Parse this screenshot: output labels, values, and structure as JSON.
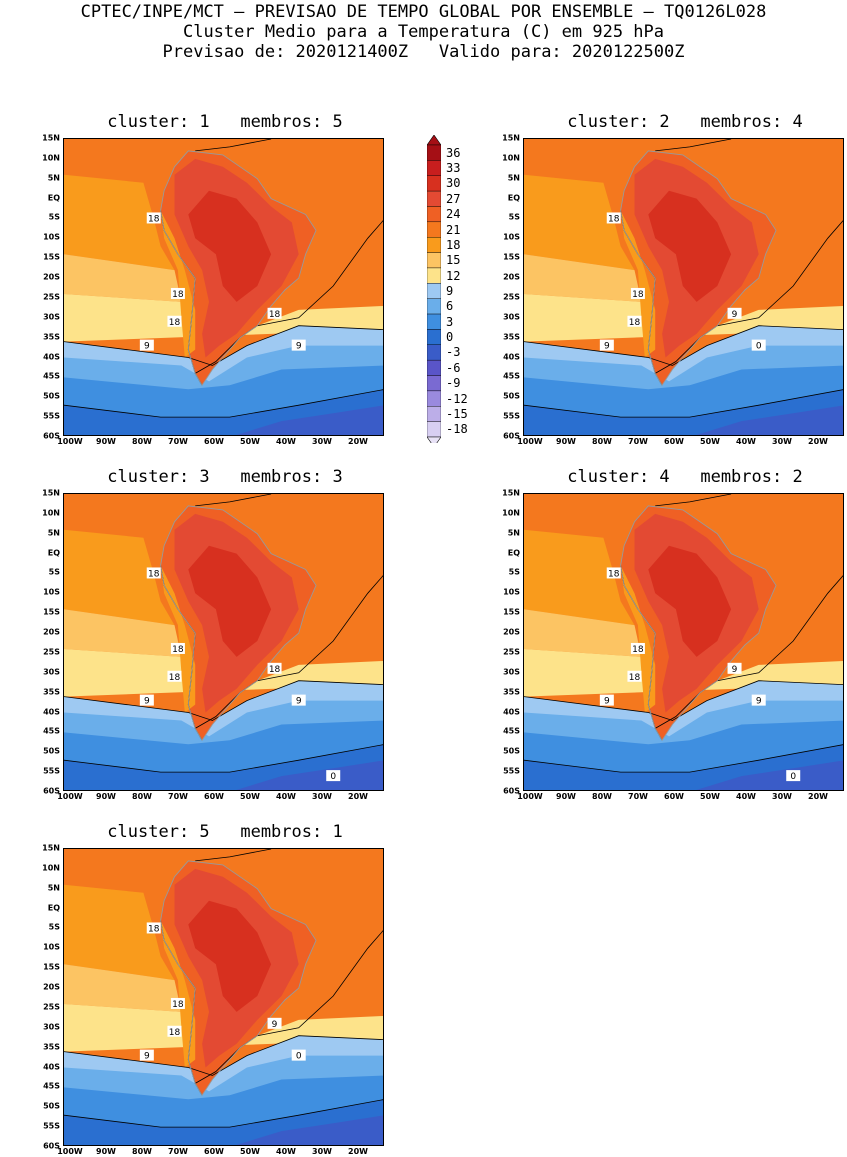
{
  "header": {
    "line1": "CPTEC/INPE/MCT – PREVISAO DE TEMPO GLOBAL POR ENSEMBLE – TQ0126L028",
    "line2": "Cluster Medio para a Temperatura (C) em 925 hPa",
    "line3": "Previsao de: 2020121400Z   Valido para: 2020122500Z"
  },
  "lat_ticks": [
    "15N",
    "10N",
    "5N",
    "EQ",
    "5S",
    "10S",
    "15S",
    "20S",
    "25S",
    "30S",
    "35S",
    "40S",
    "45S",
    "50S",
    "55S",
    "60S"
  ],
  "lon_ticks": [
    "100W",
    "90W",
    "80W",
    "70W",
    "60W",
    "50W",
    "40W",
    "30W",
    "20W"
  ],
  "colorbar": {
    "levels": [
      "36",
      "33",
      "30",
      "27",
      "24",
      "21",
      "18",
      "15",
      "12",
      "9",
      "6",
      "3",
      "0",
      "-3",
      "-6",
      "-9",
      "-12",
      "-15",
      "-18"
    ],
    "colors": [
      "#a50f15",
      "#c81e1e",
      "#d7301f",
      "#e34a33",
      "#ef6024",
      "#f4781e",
      "#f99b1c",
      "#fcc463",
      "#fde38a",
      "#9ec9f2",
      "#6aaeea",
      "#3f8fe0",
      "#2a6fd0",
      "#3a5cc8",
      "#5a55c8",
      "#7a6ad2",
      "#9a8ade",
      "#bcaee8",
      "#d8cff2"
    ]
  },
  "panels": [
    {
      "title": "cluster: 1   membros: 5",
      "labels": [
        "18",
        "18",
        "18",
        "18",
        "9",
        "9"
      ]
    },
    {
      "title": "cluster: 2   membros: 4",
      "labels": [
        "18",
        "18",
        "18",
        "9",
        "9",
        "0"
      ]
    },
    {
      "title": "cluster: 3   membros: 3",
      "labels": [
        "18",
        "18",
        "18",
        "18",
        "9",
        "9",
        "0"
      ]
    },
    {
      "title": "cluster: 4   membros: 2",
      "labels": [
        "18",
        "18",
        "18",
        "9",
        "9",
        "9",
        "0"
      ]
    },
    {
      "title": "cluster: 5   membros: 1",
      "labels": [
        "18",
        "18",
        "18",
        "9",
        "9",
        "0"
      ]
    }
  ]
}
